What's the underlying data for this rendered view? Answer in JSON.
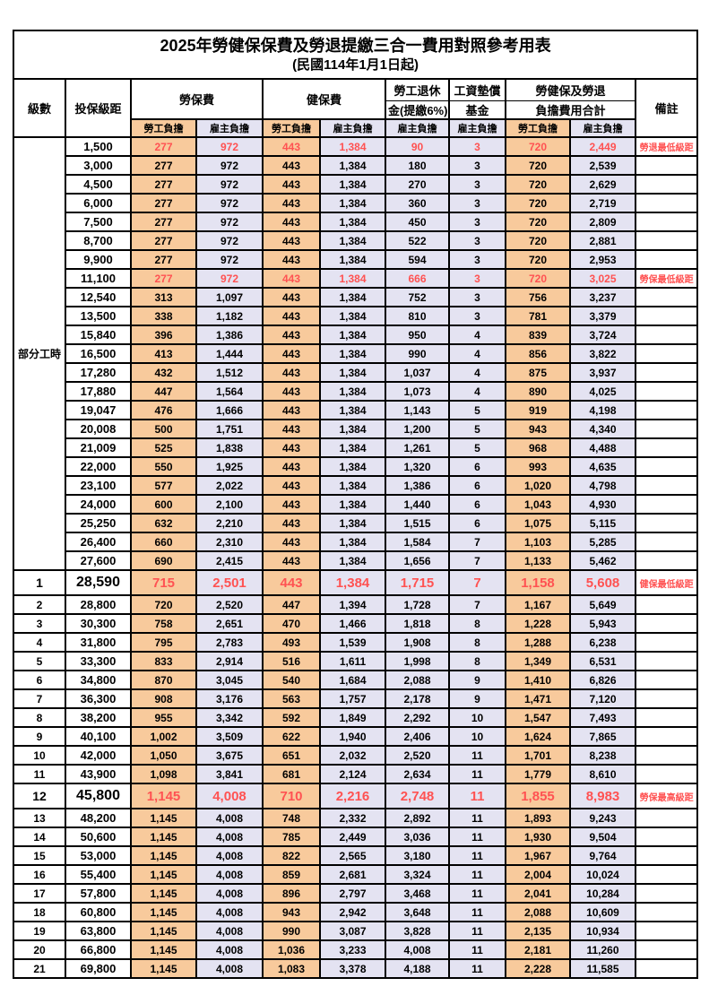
{
  "title": "2025年勞健保保費及勞退提繳三合一費用對照參考用表",
  "subtitle": "(民國114年1月1日起)",
  "header": {
    "level": "級數",
    "bracket": "投保級距",
    "labor_ins": "勞保費",
    "health_ins": "健保費",
    "pension_line1": "勞工退休",
    "pension_line2": "金(提繳6%)",
    "wage_fund_line1": "工資墊償",
    "wage_fund_line2": "基金",
    "total_line1": "勞健保及勞退",
    "total_line2": "負擔費用合計",
    "remark": "備註",
    "employee": "勞工負擔",
    "employer": "雇主負擔"
  },
  "part_time_label": "部分工時",
  "colors": {
    "employee_bg": "#F8CA9C",
    "employer_bg": "#E4E3F2",
    "red_text": "#FF5252",
    "border": "#000000"
  },
  "rows": [
    {
      "level": "",
      "bracket": "1,500",
      "v": [
        "277",
        "972",
        "443",
        "1,384",
        "90",
        "3",
        "720",
        "2,449"
      ],
      "note": "勞退最低級距",
      "red": true,
      "big": false
    },
    {
      "level": "",
      "bracket": "3,000",
      "v": [
        "277",
        "972",
        "443",
        "1,384",
        "180",
        "3",
        "720",
        "2,539"
      ],
      "note": "",
      "red": false,
      "big": false
    },
    {
      "level": "",
      "bracket": "4,500",
      "v": [
        "277",
        "972",
        "443",
        "1,384",
        "270",
        "3",
        "720",
        "2,629"
      ],
      "note": "",
      "red": false,
      "big": false
    },
    {
      "level": "",
      "bracket": "6,000",
      "v": [
        "277",
        "972",
        "443",
        "1,384",
        "360",
        "3",
        "720",
        "2,719"
      ],
      "note": "",
      "red": false,
      "big": false
    },
    {
      "level": "",
      "bracket": "7,500",
      "v": [
        "277",
        "972",
        "443",
        "1,384",
        "450",
        "3",
        "720",
        "2,809"
      ],
      "note": "",
      "red": false,
      "big": false
    },
    {
      "level": "",
      "bracket": "8,700",
      "v": [
        "277",
        "972",
        "443",
        "1,384",
        "522",
        "3",
        "720",
        "2,881"
      ],
      "note": "",
      "red": false,
      "big": false
    },
    {
      "level": "",
      "bracket": "9,900",
      "v": [
        "277",
        "972",
        "443",
        "1,384",
        "594",
        "3",
        "720",
        "2,953"
      ],
      "note": "",
      "red": false,
      "big": false
    },
    {
      "level": "",
      "bracket": "11,100",
      "v": [
        "277",
        "972",
        "443",
        "1,384",
        "666",
        "3",
        "720",
        "3,025"
      ],
      "note": "勞保最低級距",
      "red": true,
      "big": false
    },
    {
      "level": "",
      "bracket": "12,540",
      "v": [
        "313",
        "1,097",
        "443",
        "1,384",
        "752",
        "3",
        "756",
        "3,237"
      ],
      "note": "",
      "red": false,
      "big": false
    },
    {
      "level": "",
      "bracket": "13,500",
      "v": [
        "338",
        "1,182",
        "443",
        "1,384",
        "810",
        "3",
        "781",
        "3,379"
      ],
      "note": "",
      "red": false,
      "big": false
    },
    {
      "level": "",
      "bracket": "15,840",
      "v": [
        "396",
        "1,386",
        "443",
        "1,384",
        "950",
        "4",
        "839",
        "3,724"
      ],
      "note": "",
      "red": false,
      "big": false
    },
    {
      "level": "",
      "bracket": "16,500",
      "v": [
        "413",
        "1,444",
        "443",
        "1,384",
        "990",
        "4",
        "856",
        "3,822"
      ],
      "note": "",
      "red": false,
      "big": false
    },
    {
      "level": "",
      "bracket": "17,280",
      "v": [
        "432",
        "1,512",
        "443",
        "1,384",
        "1,037",
        "4",
        "875",
        "3,937"
      ],
      "note": "",
      "red": false,
      "big": false
    },
    {
      "level": "",
      "bracket": "17,880",
      "v": [
        "447",
        "1,564",
        "443",
        "1,384",
        "1,073",
        "4",
        "890",
        "4,025"
      ],
      "note": "",
      "red": false,
      "big": false
    },
    {
      "level": "",
      "bracket": "19,047",
      "v": [
        "476",
        "1,666",
        "443",
        "1,384",
        "1,143",
        "5",
        "919",
        "4,198"
      ],
      "note": "",
      "red": false,
      "big": false
    },
    {
      "level": "",
      "bracket": "20,008",
      "v": [
        "500",
        "1,751",
        "443",
        "1,384",
        "1,200",
        "5",
        "943",
        "4,340"
      ],
      "note": "",
      "red": false,
      "big": false
    },
    {
      "level": "",
      "bracket": "21,009",
      "v": [
        "525",
        "1,838",
        "443",
        "1,384",
        "1,261",
        "5",
        "968",
        "4,488"
      ],
      "note": "",
      "red": false,
      "big": false
    },
    {
      "level": "",
      "bracket": "22,000",
      "v": [
        "550",
        "1,925",
        "443",
        "1,384",
        "1,320",
        "6",
        "993",
        "4,635"
      ],
      "note": "",
      "red": false,
      "big": false
    },
    {
      "level": "",
      "bracket": "23,100",
      "v": [
        "577",
        "2,022",
        "443",
        "1,384",
        "1,386",
        "6",
        "1,020",
        "4,798"
      ],
      "note": "",
      "red": false,
      "big": false
    },
    {
      "level": "",
      "bracket": "24,000",
      "v": [
        "600",
        "2,100",
        "443",
        "1,384",
        "1,440",
        "6",
        "1,043",
        "4,930"
      ],
      "note": "",
      "red": false,
      "big": false
    },
    {
      "level": "",
      "bracket": "25,250",
      "v": [
        "632",
        "2,210",
        "443",
        "1,384",
        "1,515",
        "6",
        "1,075",
        "5,115"
      ],
      "note": "",
      "red": false,
      "big": false
    },
    {
      "level": "",
      "bracket": "26,400",
      "v": [
        "660",
        "2,310",
        "443",
        "1,384",
        "1,584",
        "7",
        "1,103",
        "5,285"
      ],
      "note": "",
      "red": false,
      "big": false
    },
    {
      "level": "",
      "bracket": "27,600",
      "v": [
        "690",
        "2,415",
        "443",
        "1,384",
        "1,656",
        "7",
        "1,133",
        "5,462"
      ],
      "note": "",
      "red": false,
      "big": false
    },
    {
      "level": "1",
      "bracket": "28,590",
      "v": [
        "715",
        "2,501",
        "443",
        "1,384",
        "1,715",
        "7",
        "1,158",
        "5,608"
      ],
      "note": "健保最低級距",
      "red": true,
      "big": true
    },
    {
      "level": "2",
      "bracket": "28,800",
      "v": [
        "720",
        "2,520",
        "447",
        "1,394",
        "1,728",
        "7",
        "1,167",
        "5,649"
      ],
      "note": "",
      "red": false,
      "big": false
    },
    {
      "level": "3",
      "bracket": "30,300",
      "v": [
        "758",
        "2,651",
        "470",
        "1,466",
        "1,818",
        "8",
        "1,228",
        "5,943"
      ],
      "note": "",
      "red": false,
      "big": false
    },
    {
      "level": "4",
      "bracket": "31,800",
      "v": [
        "795",
        "2,783",
        "493",
        "1,539",
        "1,908",
        "8",
        "1,288",
        "6,238"
      ],
      "note": "",
      "red": false,
      "big": false
    },
    {
      "level": "5",
      "bracket": "33,300",
      "v": [
        "833",
        "2,914",
        "516",
        "1,611",
        "1,998",
        "8",
        "1,349",
        "6,531"
      ],
      "note": "",
      "red": false,
      "big": false
    },
    {
      "level": "6",
      "bracket": "34,800",
      "v": [
        "870",
        "3,045",
        "540",
        "1,684",
        "2,088",
        "9",
        "1,410",
        "6,826"
      ],
      "note": "",
      "red": false,
      "big": false
    },
    {
      "level": "7",
      "bracket": "36,300",
      "v": [
        "908",
        "3,176",
        "563",
        "1,757",
        "2,178",
        "9",
        "1,471",
        "7,120"
      ],
      "note": "",
      "red": false,
      "big": false
    },
    {
      "level": "8",
      "bracket": "38,200",
      "v": [
        "955",
        "3,342",
        "592",
        "1,849",
        "2,292",
        "10",
        "1,547",
        "7,493"
      ],
      "note": "",
      "red": false,
      "big": false
    },
    {
      "level": "9",
      "bracket": "40,100",
      "v": [
        "1,002",
        "3,509",
        "622",
        "1,940",
        "2,406",
        "10",
        "1,624",
        "7,865"
      ],
      "note": "",
      "red": false,
      "big": false
    },
    {
      "level": "10",
      "bracket": "42,000",
      "v": [
        "1,050",
        "3,675",
        "651",
        "2,032",
        "2,520",
        "11",
        "1,701",
        "8,238"
      ],
      "note": "",
      "red": false,
      "big": false
    },
    {
      "level": "11",
      "bracket": "43,900",
      "v": [
        "1,098",
        "3,841",
        "681",
        "2,124",
        "2,634",
        "11",
        "1,779",
        "8,610"
      ],
      "note": "",
      "red": false,
      "big": false
    },
    {
      "level": "12",
      "bracket": "45,800",
      "v": [
        "1,145",
        "4,008",
        "710",
        "2,216",
        "2,748",
        "11",
        "1,855",
        "8,983"
      ],
      "note": "勞保最高級距",
      "red": true,
      "big": true
    },
    {
      "level": "13",
      "bracket": "48,200",
      "v": [
        "1,145",
        "4,008",
        "748",
        "2,332",
        "2,892",
        "11",
        "1,893",
        "9,243"
      ],
      "note": "",
      "red": false,
      "big": false
    },
    {
      "level": "14",
      "bracket": "50,600",
      "v": [
        "1,145",
        "4,008",
        "785",
        "2,449",
        "3,036",
        "11",
        "1,930",
        "9,504"
      ],
      "note": "",
      "red": false,
      "big": false
    },
    {
      "level": "15",
      "bracket": "53,000",
      "v": [
        "1,145",
        "4,008",
        "822",
        "2,565",
        "3,180",
        "11",
        "1,967",
        "9,764"
      ],
      "note": "",
      "red": false,
      "big": false
    },
    {
      "level": "16",
      "bracket": "55,400",
      "v": [
        "1,145",
        "4,008",
        "859",
        "2,681",
        "3,324",
        "11",
        "2,004",
        "10,024"
      ],
      "note": "",
      "red": false,
      "big": false
    },
    {
      "level": "17",
      "bracket": "57,800",
      "v": [
        "1,145",
        "4,008",
        "896",
        "2,797",
        "3,468",
        "11",
        "2,041",
        "10,284"
      ],
      "note": "",
      "red": false,
      "big": false
    },
    {
      "level": "18",
      "bracket": "60,800",
      "v": [
        "1,145",
        "4,008",
        "943",
        "2,942",
        "3,648",
        "11",
        "2,088",
        "10,609"
      ],
      "note": "",
      "red": false,
      "big": false
    },
    {
      "level": "19",
      "bracket": "63,800",
      "v": [
        "1,145",
        "4,008",
        "990",
        "3,087",
        "3,828",
        "11",
        "2,135",
        "10,934"
      ],
      "note": "",
      "red": false,
      "big": false
    },
    {
      "level": "20",
      "bracket": "66,800",
      "v": [
        "1,145",
        "4,008",
        "1,036",
        "3,233",
        "4,008",
        "11",
        "2,181",
        "11,260"
      ],
      "note": "",
      "red": false,
      "big": false
    },
    {
      "level": "21",
      "bracket": "69,800",
      "v": [
        "1,145",
        "4,008",
        "1,083",
        "3,378",
        "4,188",
        "11",
        "2,228",
        "11,585"
      ],
      "note": "",
      "red": false,
      "big": false
    }
  ]
}
